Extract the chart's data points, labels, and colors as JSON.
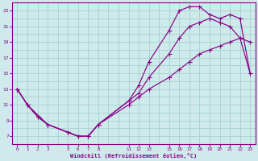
{
  "xlabel": "Windchill (Refroidissement éolien,°C)",
  "background_color": "#ceeaea",
  "grid_color": "#aad4d4",
  "line_color": "#880088",
  "xlim": [
    -0.5,
    23.5
  ],
  "ylim": [
    6.0,
    24.0
  ],
  "xticks": [
    0,
    1,
    2,
    3,
    5,
    6,
    7,
    8,
    11,
    12,
    13,
    15,
    16,
    17,
    18,
    19,
    20,
    21,
    22,
    23
  ],
  "yticks": [
    7,
    9,
    11,
    13,
    15,
    17,
    19,
    21,
    23
  ],
  "curve1_x": [
    0,
    1,
    2,
    3,
    5,
    6,
    7,
    8,
    11,
    12,
    13,
    15,
    16,
    17,
    18,
    19,
    20,
    21,
    22,
    23
  ],
  "curve1_y": [
    13,
    11,
    9.5,
    8.5,
    7.5,
    7.0,
    7.0,
    8.5,
    11.5,
    13.5,
    16.5,
    20.5,
    23.0,
    23.5,
    23.5,
    22.5,
    22.0,
    22.5,
    22.0,
    15.0
  ],
  "curve2_x": [
    0,
    1,
    3,
    5,
    6,
    7,
    8,
    11,
    12,
    13,
    15,
    16,
    17,
    18,
    19,
    20,
    21,
    22,
    23
  ],
  "curve2_y": [
    13,
    11,
    8.5,
    7.5,
    7.0,
    7.0,
    8.5,
    11.5,
    12.5,
    14.5,
    17.5,
    19.5,
    21.0,
    21.5,
    22.0,
    21.5,
    21.0,
    19.5,
    19.0
  ],
  "curve3_x": [
    0,
    1,
    2,
    3,
    5,
    6,
    7,
    8,
    11,
    12,
    13,
    15,
    16,
    17,
    18,
    19,
    20,
    21,
    22,
    23
  ],
  "curve3_y": [
    13,
    11,
    9.5,
    8.5,
    7.5,
    7.0,
    7.0,
    8.5,
    11.0,
    12.0,
    13.0,
    14.5,
    15.5,
    16.5,
    17.5,
    18.0,
    18.5,
    19.0,
    19.5,
    15.0
  ]
}
